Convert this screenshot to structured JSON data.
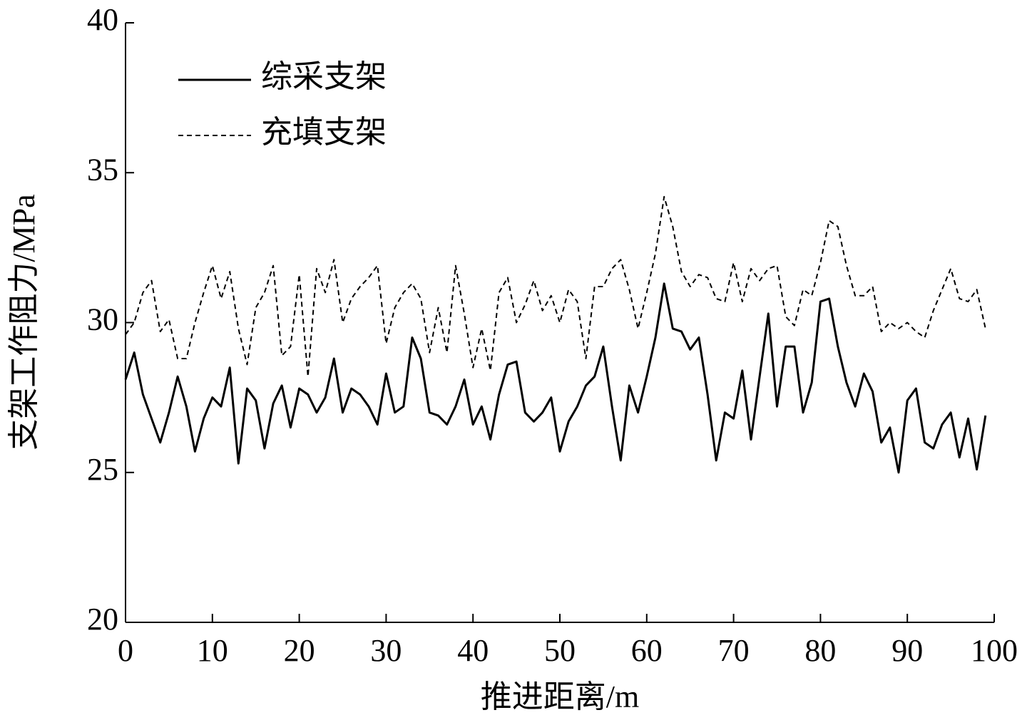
{
  "chart_data": {
    "type": "line",
    "x_label": "推进距离/m",
    "y_label": "支架工作阻力/MPa",
    "x": [
      0,
      1,
      2,
      3,
      4,
      5,
      6,
      7,
      8,
      9,
      10,
      11,
      12,
      13,
      14,
      15,
      16,
      17,
      18,
      19,
      20,
      21,
      22,
      23,
      24,
      25,
      26,
      27,
      28,
      29,
      30,
      31,
      32,
      33,
      34,
      35,
      36,
      37,
      38,
      39,
      40,
      41,
      42,
      43,
      44,
      45,
      46,
      47,
      48,
      49,
      50,
      51,
      52,
      53,
      54,
      55,
      56,
      57,
      58,
      59,
      60,
      61,
      62,
      63,
      64,
      65,
      66,
      67,
      68,
      69,
      70,
      71,
      72,
      73,
      74,
      75,
      76,
      77,
      78,
      79,
      80,
      81,
      82,
      83,
      84,
      85,
      86,
      87,
      88,
      89,
      90,
      91,
      92,
      93,
      94,
      95,
      96,
      97,
      98,
      99
    ],
    "series": [
      {
        "name": "综采支架",
        "color": "#000000",
        "dash": "solid",
        "values": [
          28.1,
          29.0,
          27.6,
          26.8,
          26.0,
          27.0,
          28.2,
          27.2,
          25.7,
          26.8,
          27.5,
          27.2,
          28.5,
          25.3,
          27.8,
          27.4,
          25.8,
          27.3,
          27.9,
          26.5,
          27.8,
          27.6,
          27.0,
          27.5,
          28.8,
          27.0,
          27.8,
          27.6,
          27.2,
          26.6,
          28.3,
          27.0,
          27.2,
          29.5,
          28.8,
          27.0,
          26.9,
          26.6,
          27.2,
          28.1,
          26.6,
          27.2,
          26.1,
          27.6,
          28.6,
          28.7,
          27.0,
          26.7,
          27.0,
          27.5,
          25.7,
          26.7,
          27.2,
          27.9,
          28.2,
          29.2,
          27.2,
          25.4,
          27.9,
          27.0,
          28.2,
          29.5,
          31.3,
          29.8,
          29.7,
          29.1,
          29.5,
          27.6,
          25.4,
          27.0,
          26.8,
          28.4,
          26.1,
          28.2,
          30.3,
          27.2,
          29.2,
          29.2,
          27.0,
          28.0,
          30.7,
          30.8,
          29.2,
          28.0,
          27.2,
          28.3,
          27.7,
          26.0,
          26.5,
          25.0,
          27.4,
          27.8,
          26.0,
          25.8,
          26.6,
          27.0,
          25.5,
          26.8,
          25.1,
          26.9
        ]
      },
      {
        "name": "充填支架",
        "color": "#000000",
        "dash": "dashed",
        "values": [
          29.6,
          30.0,
          31.0,
          31.4,
          29.7,
          30.1,
          28.8,
          28.8,
          30.0,
          31.0,
          31.9,
          30.8,
          31.7,
          29.8,
          28.6,
          30.5,
          31.0,
          31.9,
          28.9,
          29.2,
          31.6,
          28.2,
          31.8,
          31.0,
          32.1,
          30.0,
          30.8,
          31.2,
          31.5,
          31.9,
          29.3,
          30.5,
          31.0,
          31.3,
          30.8,
          29.0,
          30.5,
          29.0,
          31.9,
          30.3,
          28.5,
          29.8,
          28.4,
          31.0,
          31.5,
          30.0,
          30.6,
          31.4,
          30.4,
          30.9,
          30.0,
          31.1,
          30.7,
          28.8,
          31.2,
          31.2,
          31.8,
          32.1,
          31.1,
          29.8,
          31.0,
          32.3,
          34.2,
          33.2,
          31.7,
          31.2,
          31.6,
          31.5,
          30.8,
          30.7,
          32.0,
          30.7,
          31.8,
          31.4,
          31.8,
          31.9,
          30.2,
          29.9,
          31.1,
          30.9,
          32.0,
          33.4,
          33.2,
          31.9,
          30.9,
          30.9,
          31.2,
          29.7,
          30.0,
          29.8,
          30.0,
          29.7,
          29.5,
          30.4,
          31.1,
          31.8,
          30.8,
          30.7,
          31.1,
          29.8
        ]
      }
    ],
    "xlim": [
      0,
      100
    ],
    "xticks": [
      0,
      10,
      20,
      30,
      40,
      50,
      60,
      70,
      80,
      90,
      100
    ],
    "ylim": [
      20,
      40
    ],
    "yticks": [
      20,
      25,
      30,
      35,
      40
    ],
    "legend": "upper-left"
  }
}
